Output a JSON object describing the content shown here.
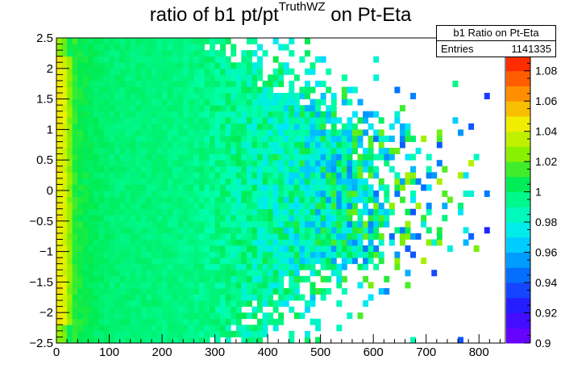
{
  "title": {
    "prefix": "ratio of b1 pt/pt",
    "superscript": "TruthWZ",
    "suffix": " on Pt-Eta"
  },
  "stats_box": {
    "name": "b1 Ratio on Pt-Eta",
    "entries_label": "Entries",
    "entries_value": "1141335"
  },
  "chart_data": {
    "type": "heatmap",
    "title": "ratio of b1 pt/pt^TruthWZ on Pt-Eta",
    "xlabel": "",
    "ylabel": "",
    "xlim": [
      0,
      850
    ],
    "ylim": [
      -2.5,
      2.5
    ],
    "x_ticks": [
      0,
      100,
      200,
      300,
      400,
      500,
      600,
      700,
      800
    ],
    "y_ticks": [
      -2.5,
      -2,
      -1.5,
      -1,
      -0.5,
      0,
      0.5,
      1,
      1.5,
      2,
      2.5
    ],
    "x_tick_labels": [
      "0",
      "100",
      "200",
      "300",
      "400",
      "500",
      "600",
      "700",
      "800"
    ],
    "y_tick_labels": [
      "−2.5",
      "−2",
      "−1.5",
      "−1",
      "−0.5",
      "0",
      "0.5",
      "1",
      "1.5",
      "2",
      "2.5"
    ],
    "x_bin_width": 10,
    "y_bin_width": 0.1,
    "z_range": [
      0.9,
      1.09
    ],
    "z_ticks": [
      0.9,
      0.92,
      0.94,
      0.96,
      0.98,
      1,
      1.02,
      1.04,
      1.06,
      1.08
    ],
    "z_tick_labels": [
      "0.9",
      "0.92",
      "0.94",
      "0.96",
      "0.98",
      "1",
      "1.02",
      "1.04",
      "1.06",
      "1.08"
    ],
    "palette": "rainbow (violet low to red high)",
    "approx_ratio_by_pt": [
      {
        "pt": 5,
        "ratio": 1.045
      },
      {
        "pt": 15,
        "ratio": 1.04
      },
      {
        "pt": 25,
        "ratio": 1.025
      },
      {
        "pt": 35,
        "ratio": 1.012
      },
      {
        "pt": 50,
        "ratio": 1.007
      },
      {
        "pt": 100,
        "ratio": 1.0
      },
      {
        "pt": 200,
        "ratio": 0.998
      },
      {
        "pt": 300,
        "ratio": 0.995
      },
      {
        "pt": 400,
        "ratio": 0.99
      },
      {
        "pt": 500,
        "ratio": 0.985
      },
      {
        "pt": 700,
        "ratio": 0.985
      }
    ],
    "populated_pt_edge_by_abs_eta": [
      {
        "abs_eta": 0.0,
        "max_pt": 700
      },
      {
        "abs_eta": 1.0,
        "max_pt": 640
      },
      {
        "abs_eta": 1.5,
        "max_pt": 540
      },
      {
        "abs_eta": 2.0,
        "max_pt": 450
      },
      {
        "abs_eta": 2.5,
        "max_pt": 380
      }
    ],
    "outlier_max_pt": 820,
    "grid": false,
    "legend": "top-right stats box",
    "entries": 1141335
  }
}
